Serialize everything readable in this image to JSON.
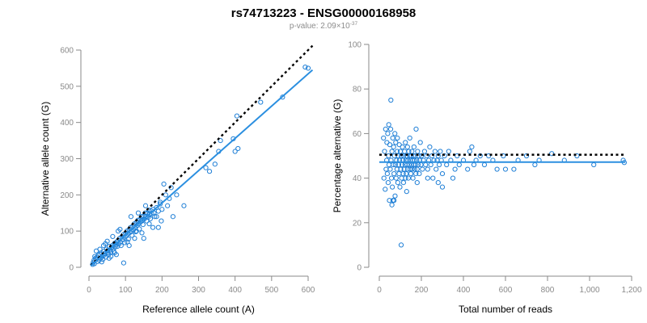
{
  "figure": {
    "title": "rs74713223 - ENSG00000168958",
    "pvalue_prefix": "p-value: 2.09",
    "pvalue_times": "×",
    "pvalue_base": "10",
    "pvalue_exponent": "-37"
  },
  "colors": {
    "points": "#1f7fd6",
    "fit": "#2b8fe0",
    "reference": "#000000",
    "axis": "#8a8a8a"
  },
  "chart_data": [
    {
      "type": "scatter",
      "id": "left",
      "xlabel": "Reference allele count (A)",
      "ylabel": "Alternative allele count (G)",
      "xlim": [
        0,
        600
      ],
      "ylim": [
        0,
        600
      ],
      "xticks": [
        0,
        100,
        200,
        300,
        400,
        500,
        600
      ],
      "yticks": [
        0,
        100,
        200,
        300,
        400,
        500,
        600
      ],
      "xtick_labels": [
        "0",
        "100",
        "200",
        "300",
        "400",
        "500",
        "600"
      ],
      "ytick_labels": [
        "0",
        "100",
        "200",
        "300",
        "400",
        "500",
        "600"
      ],
      "fit_line": {
        "from": [
          5,
          4
        ],
        "to": [
          612,
          545
        ],
        "style": "solid"
      },
      "reference_line": {
        "from": [
          5,
          5
        ],
        "to": [
          612,
          612
        ],
        "style": "dotted"
      },
      "points": [
        [
          10,
          8
        ],
        [
          12,
          14
        ],
        [
          14,
          20
        ],
        [
          15,
          10
        ],
        [
          16,
          30
        ],
        [
          18,
          25
        ],
        [
          20,
          22
        ],
        [
          22,
          28
        ],
        [
          24,
          16
        ],
        [
          26,
          34
        ],
        [
          28,
          20
        ],
        [
          30,
          36
        ],
        [
          32,
          26
        ],
        [
          34,
          40
        ],
        [
          36,
          30
        ],
        [
          38,
          22
        ],
        [
          40,
          44
        ],
        [
          42,
          34
        ],
        [
          44,
          38
        ],
        [
          46,
          28
        ],
        [
          48,
          50
        ],
        [
          50,
          40
        ],
        [
          52,
          46
        ],
        [
          54,
          36
        ],
        [
          56,
          58
        ],
        [
          58,
          48
        ],
        [
          60,
          42
        ],
        [
          62,
          55
        ],
        [
          64,
          60
        ],
        [
          66,
          50
        ],
        [
          68,
          44
        ],
        [
          70,
          66
        ],
        [
          72,
          56
        ],
        [
          74,
          62
        ],
        [
          76,
          70
        ],
        [
          78,
          58
        ],
        [
          80,
          74
        ],
        [
          82,
          64
        ],
        [
          84,
          80
        ],
        [
          86,
          70
        ],
        [
          88,
          60
        ],
        [
          90,
          84
        ],
        [
          92,
          76
        ],
        [
          94,
          90
        ],
        [
          96,
          82
        ],
        [
          98,
          68
        ],
        [
          100,
          94
        ],
        [
          102,
          86
        ],
        [
          104,
          100
        ],
        [
          106,
          92
        ],
        [
          108,
          78
        ],
        [
          110,
          104
        ],
        [
          112,
          96
        ],
        [
          114,
          110
        ],
        [
          116,
          100
        ],
        [
          118,
          88
        ],
        [
          120,
          114
        ],
        [
          122,
          104
        ],
        [
          124,
          120
        ],
        [
          126,
          110
        ],
        [
          128,
          98
        ],
        [
          130,
          124
        ],
        [
          132,
          116
        ],
        [
          134,
          130
        ],
        [
          136,
          120
        ],
        [
          138,
          106
        ],
        [
          140,
          132
        ],
        [
          142,
          126
        ],
        [
          144,
          140
        ],
        [
          146,
          130
        ],
        [
          148,
          118
        ],
        [
          150,
          142
        ],
        [
          152,
          134
        ],
        [
          154,
          150
        ],
        [
          156,
          140
        ],
        [
          158,
          128
        ],
        [
          160,
          150
        ],
        [
          162,
          138
        ],
        [
          164,
          158
        ],
        [
          166,
          146
        ],
        [
          168,
          134
        ],
        [
          170,
          156
        ],
        [
          172,
          148
        ],
        [
          175,
          160
        ],
        [
          178,
          150
        ],
        [
          180,
          140
        ],
        [
          185,
          165
        ],
        [
          190,
          155
        ],
        [
          195,
          175
        ],
        [
          200,
          160
        ],
        [
          30,
          50
        ],
        [
          40,
          60
        ],
        [
          50,
          72
        ],
        [
          60,
          30
        ],
        [
          70,
          40
        ],
        [
          80,
          100
        ],
        [
          95,
          12
        ],
        [
          110,
          60
        ],
        [
          130,
          100
        ],
        [
          150,
          80
        ],
        [
          20,
          45
        ],
        [
          35,
          15
        ],
        [
          45,
          65
        ],
        [
          55,
          25
        ],
        [
          65,
          85
        ],
        [
          75,
          35
        ],
        [
          85,
          105
        ],
        [
          105,
          70
        ],
        [
          115,
          140
        ],
        [
          125,
          80
        ],
        [
          135,
          150
        ],
        [
          145,
          95
        ],
        [
          155,
          170
        ],
        [
          165,
          120
        ],
        [
          175,
          110
        ],
        [
          185,
          140
        ],
        [
          190,
          110
        ],
        [
          195,
          180
        ],
        [
          198,
          128
        ],
        [
          205,
          230
        ],
        [
          210,
          200
        ],
        [
          215,
          170
        ],
        [
          220,
          190
        ],
        [
          225,
          220
        ],
        [
          230,
          140
        ],
        [
          240,
          200
        ],
        [
          260,
          170
        ],
        [
          320,
          275
        ],
        [
          330,
          265
        ],
        [
          345,
          285
        ],
        [
          355,
          320
        ],
        [
          360,
          350
        ],
        [
          395,
          355
        ],
        [
          400,
          320
        ],
        [
          408,
          328
        ],
        [
          405,
          418
        ],
        [
          470,
          456
        ],
        [
          530,
          470
        ],
        [
          592,
          553
        ],
        [
          600,
          550
        ]
      ]
    },
    {
      "type": "scatter",
      "id": "right",
      "xlabel": "Total number of reads",
      "ylabel": "Percentage alternative (G)",
      "xlim": [
        0,
        1200
      ],
      "ylim": [
        0,
        100
      ],
      "xticks": [
        0,
        200,
        400,
        600,
        800,
        1000,
        1200
      ],
      "yticks": [
        0,
        20,
        40,
        60,
        80,
        100
      ],
      "xtick_labels": [
        "0",
        "200",
        "400",
        "600",
        "800",
        "1,000",
        "1,200"
      ],
      "ytick_labels": [
        "0",
        "20",
        "40",
        "60",
        "80",
        "100"
      ],
      "fit_line": {
        "from": [
          0,
          47.2
        ],
        "to": [
          1170,
          47.2
        ],
        "style": "solid"
      },
      "reference_line": {
        "from": [
          0,
          50.5
        ],
        "to": [
          1170,
          50.5
        ],
        "style": "dotted"
      },
      "points": [
        [
          20,
          58
        ],
        [
          22,
          40
        ],
        [
          25,
          52
        ],
        [
          28,
          35
        ],
        [
          30,
          62
        ],
        [
          32,
          44
        ],
        [
          35,
          48
        ],
        [
          36,
          56
        ],
        [
          38,
          42
        ],
        [
          40,
          60
        ],
        [
          42,
          38
        ],
        [
          44,
          50
        ],
        [
          45,
          64
        ],
        [
          46,
          46
        ],
        [
          48,
          30
        ],
        [
          50,
          55
        ],
        [
          52,
          44
        ],
        [
          54,
          62
        ],
        [
          55,
          75
        ],
        [
          56,
          48
        ],
        [
          58,
          40
        ],
        [
          60,
          52
        ],
        [
          62,
          36
        ],
        [
          64,
          58
        ],
        [
          65,
          30
        ],
        [
          66,
          46
        ],
        [
          68,
          54
        ],
        [
          70,
          42
        ],
        [
          72,
          50
        ],
        [
          74,
          60
        ],
        [
          75,
          32
        ],
        [
          76,
          46
        ],
        [
          78,
          56
        ],
        [
          80,
          40
        ],
        [
          82,
          48
        ],
        [
          84,
          44
        ],
        [
          85,
          52
        ],
        [
          86,
          58
        ],
        [
          88,
          38
        ],
        [
          90,
          50
        ],
        [
          92,
          46
        ],
        [
          94,
          42
        ],
        [
          95,
          55
        ],
        [
          96,
          48
        ],
        [
          98,
          36
        ],
        [
          100,
          52
        ],
        [
          102,
          44
        ],
        [
          104,
          10
        ],
        [
          105,
          50
        ],
        [
          106,
          40
        ],
        [
          108,
          46
        ],
        [
          110,
          54
        ],
        [
          112,
          48
        ],
        [
          114,
          42
        ],
        [
          115,
          38
        ],
        [
          116,
          50
        ],
        [
          118,
          44
        ],
        [
          120,
          52
        ],
        [
          122,
          46
        ],
        [
          124,
          56
        ],
        [
          125,
          40
        ],
        [
          126,
          48
        ],
        [
          128,
          42
        ],
        [
          130,
          50
        ],
        [
          132,
          46
        ],
        [
          134,
          54
        ],
        [
          135,
          44
        ],
        [
          136,
          48
        ],
        [
          138,
          40
        ],
        [
          140,
          52
        ],
        [
          142,
          46
        ],
        [
          144,
          50
        ],
        [
          145,
          58
        ],
        [
          146,
          44
        ],
        [
          148,
          48
        ],
        [
          150,
          42
        ],
        [
          152,
          50
        ],
        [
          154,
          46
        ],
        [
          155,
          52
        ],
        [
          156,
          44
        ],
        [
          158,
          48
        ],
        [
          160,
          40
        ],
        [
          162,
          50
        ],
        [
          164,
          46
        ],
        [
          165,
          54
        ],
        [
          166,
          48
        ],
        [
          168,
          44
        ],
        [
          170,
          50
        ],
        [
          172,
          46
        ],
        [
          174,
          42
        ],
        [
          175,
          62
        ],
        [
          178,
          48
        ],
        [
          180,
          44
        ],
        [
          182,
          52
        ],
        [
          185,
          46
        ],
        [
          188,
          50
        ],
        [
          190,
          42
        ],
        [
          192,
          48
        ],
        [
          195,
          56
        ],
        [
          198,
          46
        ],
        [
          200,
          50
        ],
        [
          205,
          44
        ],
        [
          210,
          48
        ],
        [
          215,
          52
        ],
        [
          220,
          46
        ],
        [
          225,
          50
        ],
        [
          230,
          44
        ],
        [
          235,
          48
        ],
        [
          240,
          54
        ],
        [
          245,
          46
        ],
        [
          250,
          50
        ],
        [
          255,
          40
        ],
        [
          260,
          48
        ],
        [
          265,
          52
        ],
        [
          270,
          44
        ],
        [
          275,
          48
        ],
        [
          280,
          50
        ],
        [
          285,
          46
        ],
        [
          290,
          52
        ],
        [
          295,
          48
        ],
        [
          300,
          42
        ],
        [
          310,
          50
        ],
        [
          320,
          46
        ],
        [
          330,
          52
        ],
        [
          340,
          48
        ],
        [
          360,
          44
        ],
        [
          370,
          50
        ],
        [
          380,
          46
        ],
        [
          400,
          48
        ],
        [
          420,
          44
        ],
        [
          430,
          52
        ],
        [
          440,
          54
        ],
        [
          460,
          48
        ],
        [
          480,
          50
        ],
        [
          500,
          46
        ],
        [
          520,
          50
        ],
        [
          540,
          48
        ],
        [
          560,
          44
        ],
        [
          590,
          50
        ],
        [
          600,
          44
        ],
        [
          640,
          44
        ],
        [
          660,
          48
        ],
        [
          700,
          50
        ],
        [
          740,
          46
        ],
        [
          760,
          48
        ],
        [
          820,
          51
        ],
        [
          880,
          48
        ],
        [
          940,
          50
        ],
        [
          1020,
          46
        ],
        [
          1160,
          48
        ],
        [
          1165,
          47
        ],
        [
          300,
          36
        ],
        [
          350,
          40
        ],
        [
          450,
          46
        ],
        [
          280,
          38
        ],
        [
          230,
          40
        ],
        [
          180,
          38
        ],
        [
          130,
          34
        ],
        [
          70,
          30
        ],
        [
          60,
          28
        ]
      ]
    }
  ]
}
